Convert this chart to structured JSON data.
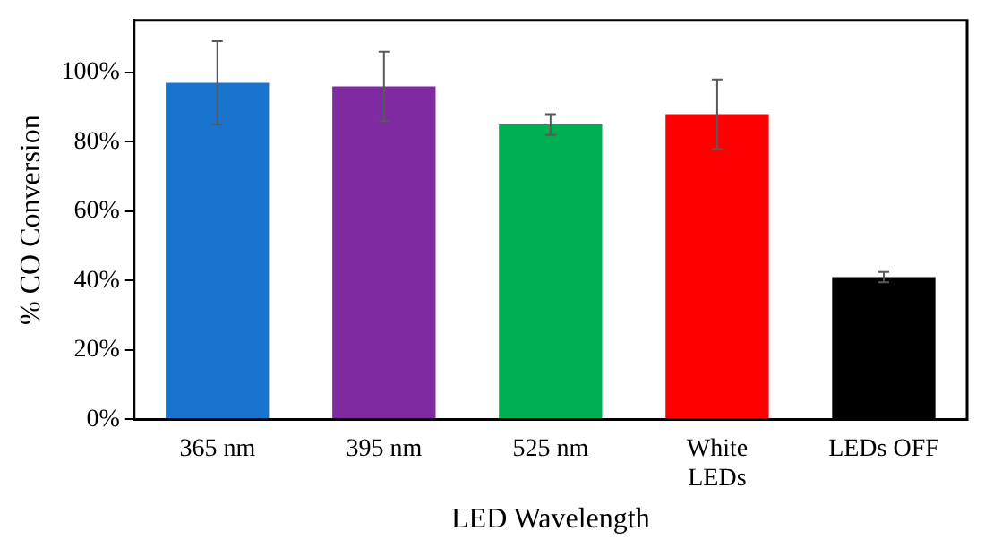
{
  "chart_data": {
    "type": "bar",
    "xlabel": "LED Wavelength",
    "ylabel": "% CO Conversion",
    "categories": [
      "365 nm",
      "395 nm",
      "525 nm",
      "White LEDs",
      "LEDs OFF"
    ],
    "values": [
      97,
      96,
      85,
      88,
      41
    ],
    "colors": [
      "#1874cd",
      "#7f2aa0",
      "#00b050",
      "#ff0000",
      "#000000"
    ],
    "errors": [
      12,
      10,
      3,
      10,
      1.5
    ],
    "ylim": [
      0,
      115
    ],
    "yticks": [
      {
        "value": 0,
        "label": "0%"
      },
      {
        "value": 20,
        "label": "20%"
      },
      {
        "value": 40,
        "label": "40%"
      },
      {
        "value": 60,
        "label": "60%"
      },
      {
        "value": 80,
        "label": "80%"
      },
      {
        "value": 100,
        "label": "100%"
      }
    ]
  }
}
